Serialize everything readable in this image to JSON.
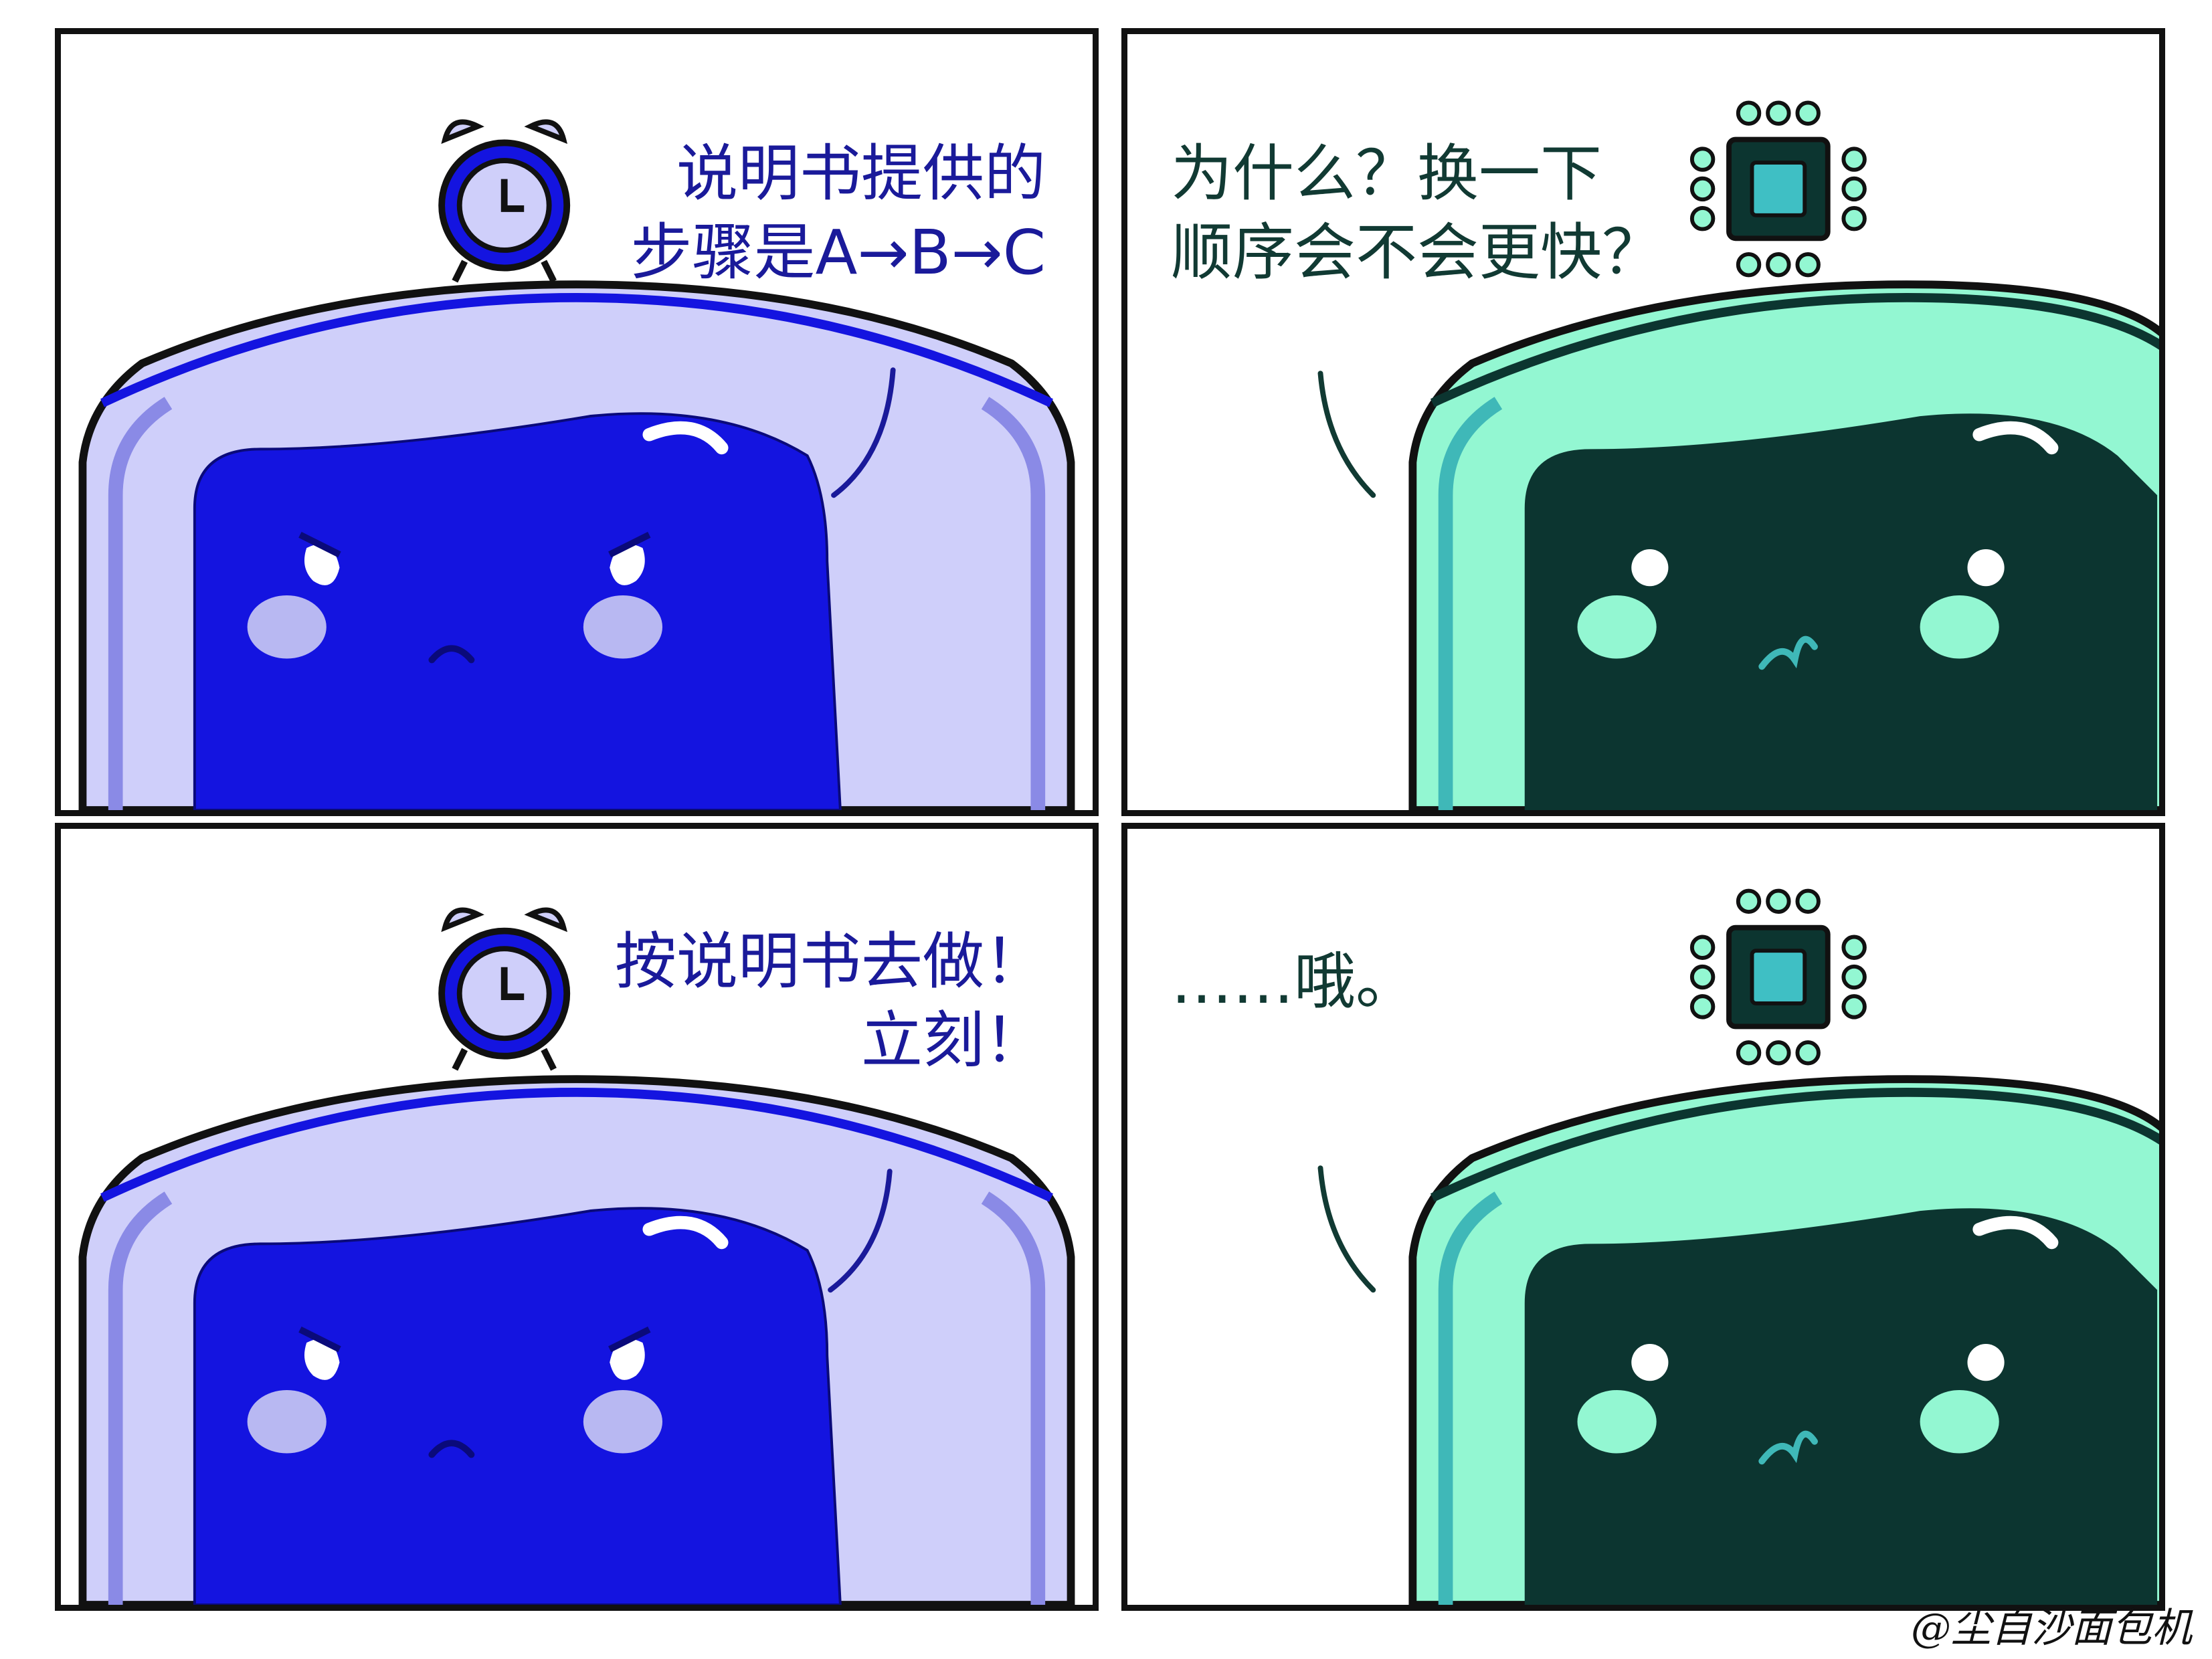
{
  "colors": {
    "blue_toast_face": "#1414e0",
    "blue_toast_crust": "#cfcffa",
    "blue_toast_edge": "#8a8ae6",
    "blue_text": "#1a1a9a",
    "green_toast_face": "#0c3530",
    "green_toast_crust": "#93f7d2",
    "green_toast_edge": "#3fb8b8",
    "green_text": "#113a33",
    "chip": "#3fbfc4"
  },
  "icons": {
    "blue_character": "alarm-clock-icon",
    "green_character": "cpu-chip-icon"
  },
  "panels": [
    {
      "speaker": "clock-toast",
      "text": "说明书提供的\n步骤是A→B→C"
    },
    {
      "speaker": "chip-toast",
      "text": "为什么？换一下\n顺序会不会更快？"
    },
    {
      "speaker": "clock-toast",
      "text": "按说明书去做！\n立刻！"
    },
    {
      "speaker": "chip-toast",
      "text": "……哦。"
    }
  ],
  "credit": "@尘自沙面包机"
}
